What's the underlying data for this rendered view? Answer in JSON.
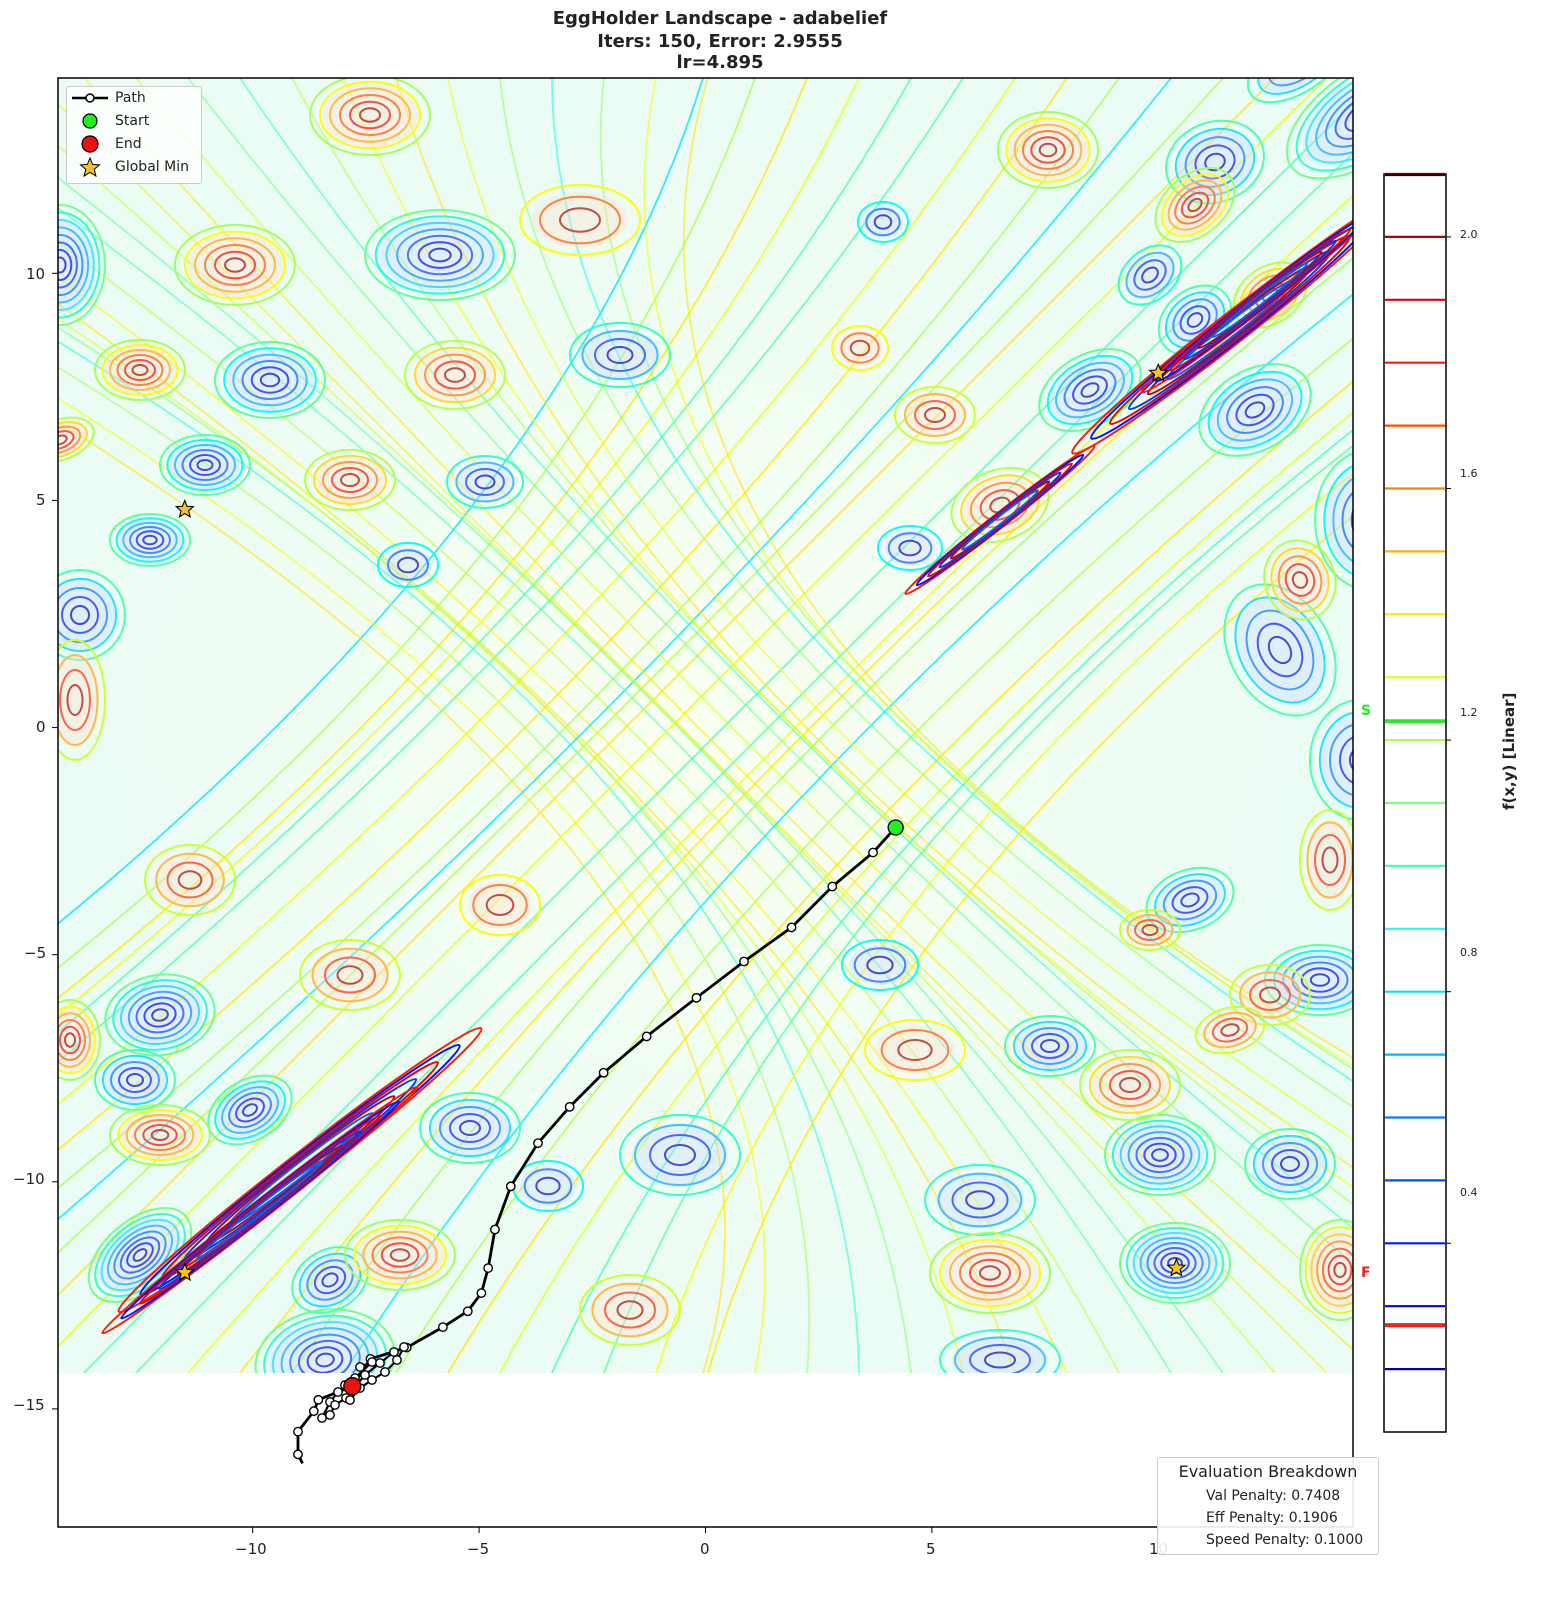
{
  "title": {
    "line1": "EggHolder Landscape - adabelief",
    "line2": "Iters: 150, Error: 2.9555",
    "line3": "lr=4.895"
  },
  "legend": {
    "items": [
      {
        "label": "Path",
        "symbol": "line-with-circle"
      },
      {
        "label": "Start",
        "symbol": "green-circle"
      },
      {
        "label": "End",
        "symbol": "red-circle"
      },
      {
        "label": "Global Min",
        "symbol": "gold-star"
      }
    ]
  },
  "evaluation": {
    "title": "Evaluation Breakdown",
    "val_penalty": "Val Penalty: 0.7408",
    "eff_penalty": "Eff Penalty: 0.1906",
    "speed_penalty": "Speed Penalty: 0.1000"
  },
  "axes": {
    "x_ticks": [
      "−10",
      "−5",
      "0",
      "5",
      "10"
    ],
    "y_ticks": [
      "10",
      "5",
      "0",
      "−5",
      "−10",
      "−15"
    ]
  },
  "colorbar": {
    "label": "f(x,y) [Linear]",
    "ticks": [
      "2.0",
      "1.6",
      "1.2",
      "0.8",
      "0.4"
    ],
    "start_marker": "S",
    "final_marker": "F",
    "start_color": "#22ee22",
    "final_color": "#ee2222"
  },
  "chart_data": {
    "type": "contour",
    "title": "EggHolder Landscape - adabelief\nIters: 150, Error: 2.9555\nlr=4.895",
    "xlabel": "",
    "ylabel": "",
    "xlim": [
      -14.3,
      14.3
    ],
    "ylim": [
      -17.6,
      14.3
    ],
    "x_ticks": [
      -10,
      -5,
      0,
      5,
      10
    ],
    "y_ticks": [
      10,
      5,
      0,
      -5,
      -10,
      -15
    ],
    "colormap": "jet",
    "colorbar": {
      "label": "f(x,y) [Linear]",
      "range": [
        0.1,
        2.1
      ],
      "ticks": [
        0.4,
        0.8,
        1.2,
        1.6,
        2.0
      ],
      "start_value": 1.23,
      "final_value": 0.27
    },
    "path": {
      "start": [
        4.2,
        -2.2
      ],
      "end": [
        -7.8,
        -14.5
      ],
      "points": [
        [
          4.2,
          -2.2
        ],
        [
          3.7,
          -2.75
        ],
        [
          2.8,
          -3.5
        ],
        [
          1.9,
          -4.4
        ],
        [
          0.85,
          -5.15
        ],
        [
          -0.2,
          -5.95
        ],
        [
          -1.3,
          -6.8
        ],
        [
          -2.25,
          -7.6
        ],
        [
          -3.0,
          -8.35
        ],
        [
          -3.7,
          -9.15
        ],
        [
          -4.3,
          -10.1
        ],
        [
          -4.65,
          -11.05
        ],
        [
          -4.8,
          -11.9
        ],
        [
          -4.95,
          -12.45
        ],
        [
          -5.25,
          -12.85
        ],
        [
          -5.8,
          -13.2
        ],
        [
          -6.6,
          -13.65
        ],
        [
          -7.4,
          -13.9
        ],
        [
          -7.8,
          -14.5
        ],
        [
          -8.55,
          -14.8
        ],
        [
          -8.65,
          -15.05
        ],
        [
          -9.0,
          -15.5
        ],
        [
          -9.0,
          -16.0
        ],
        [
          -8.9,
          -16.2
        ]
      ],
      "iterations": 150
    },
    "global_minima": [
      [
        -11.5,
        4.8
      ],
      [
        10.0,
        7.8
      ],
      [
        -11.5,
        -12.0
      ],
      [
        10.4,
        -11.9
      ]
    ],
    "legend": [
      "Path",
      "Start",
      "End",
      "Global Min"
    ],
    "legend_position": "upper left",
    "annotation": {
      "title": "Evaluation Breakdown",
      "Val Penalty": 0.7408,
      "Eff Penalty": 0.1906,
      "Speed Penalty": 0.1
    }
  }
}
